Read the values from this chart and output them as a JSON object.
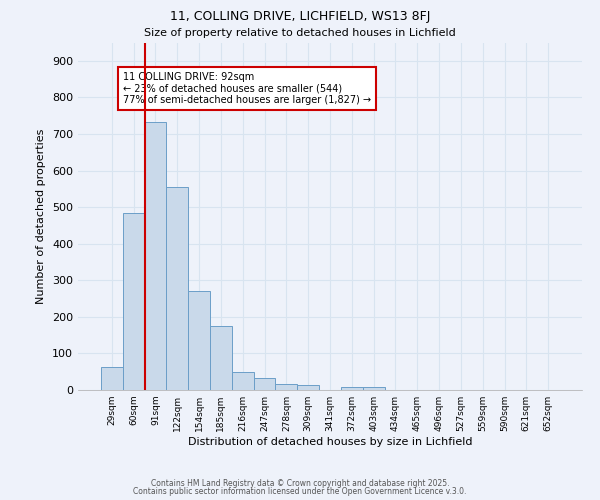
{
  "title1": "11, COLLING DRIVE, LICHFIELD, WS13 8FJ",
  "title2": "Size of property relative to detached houses in Lichfield",
  "xlabel": "Distribution of detached houses by size in Lichfield",
  "ylabel": "Number of detached properties",
  "bar_labels": [
    "29sqm",
    "60sqm",
    "91sqm",
    "122sqm",
    "154sqm",
    "185sqm",
    "216sqm",
    "247sqm",
    "278sqm",
    "309sqm",
    "341sqm",
    "372sqm",
    "403sqm",
    "434sqm",
    "465sqm",
    "496sqm",
    "527sqm",
    "559sqm",
    "590sqm",
    "621sqm",
    "652sqm"
  ],
  "bar_values": [
    62,
    484,
    733,
    554,
    272,
    175,
    48,
    33,
    17,
    13,
    0,
    8,
    8,
    0,
    0,
    0,
    0,
    0,
    0,
    0,
    0
  ],
  "bar_color": "#c9d9ea",
  "bar_edge_color": "#6b9ec8",
  "grid_color": "#d8e4f0",
  "background_color": "#eef2fa",
  "red_line_index": 2,
  "annotation_title": "11 COLLING DRIVE: 92sqm",
  "annotation_line1": "← 23% of detached houses are smaller (544)",
  "annotation_line2": "77% of semi-detached houses are larger (1,827) →",
  "annotation_box_color": "#ffffff",
  "annotation_border_color": "#cc0000",
  "ylim": [
    0,
    950
  ],
  "yticks": [
    0,
    100,
    200,
    300,
    400,
    500,
    600,
    700,
    800,
    900
  ],
  "footer1": "Contains HM Land Registry data © Crown copyright and database right 2025.",
  "footer2": "Contains public sector information licensed under the Open Government Licence v.3.0."
}
